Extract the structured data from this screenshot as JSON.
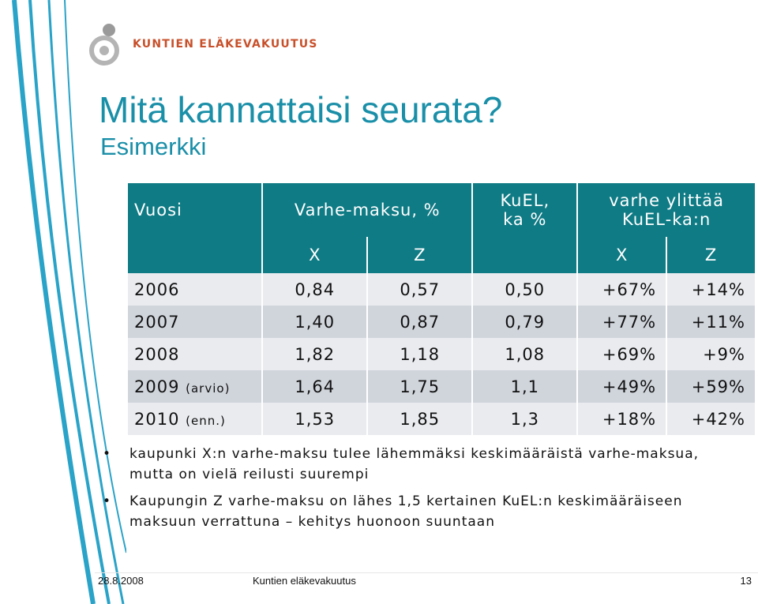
{
  "brand": {
    "name": "KUNTIEN ELÄKEVAKUUTUS",
    "color": "#c8502a"
  },
  "colors": {
    "accent": "#1a8fa8",
    "header_bg": "#0f7b85",
    "row_light": "#e9ebef",
    "row_dark": "#d0d5dc"
  },
  "slide": {
    "title": "Mitä kannattaisi seurata?",
    "subtitle": "Esimerkki"
  },
  "table": {
    "header": {
      "year": "Vuosi",
      "varhe": "Varhe-maksu, %",
      "kuel": "KuEL,\nka %",
      "exceed": "varhe ylittää\nKuEL-ka:n"
    },
    "subheader": {
      "x1": "X",
      "z1": "Z",
      "x2": "X",
      "z2": "Z"
    },
    "rows": [
      {
        "year": "2006",
        "note": "",
        "x": "0,84",
        "z": "0,57",
        "kuel": "0,50",
        "ex_x": "+67%",
        "ex_z": "+14%"
      },
      {
        "year": "2007",
        "note": "",
        "x": "1,40",
        "z": "0,87",
        "kuel": "0,79",
        "ex_x": "+77%",
        "ex_z": "+11%"
      },
      {
        "year": "2008",
        "note": "",
        "x": "1,82",
        "z": "1,18",
        "kuel": "1,08",
        "ex_x": "+69%",
        "ex_z": "+9%"
      },
      {
        "year": "2009",
        "note": "(arvio)",
        "x": "1,64",
        "z": "1,75",
        "kuel": "1,1",
        "ex_x": "+49%",
        "ex_z": "+59%"
      },
      {
        "year": "2010",
        "note": "(enn.)",
        "x": "1,53",
        "z": "1,85",
        "kuel": "1,3",
        "ex_x": "+18%",
        "ex_z": "+42%"
      }
    ]
  },
  "bullets": [
    "kaupunki X:n varhe-maksu tulee lähemmäksi keskimääräistä varhe-maksua, mutta on vielä reilusti suurempi",
    "Kaupungin Z varhe-maksu on lähes 1,5 kertainen KuEL:n keskimääräiseen maksuun verrattuna – kehitys huonoon suuntaan"
  ],
  "bullet_symbol": "•",
  "footer": {
    "date": "28.8.2008",
    "org": "Kuntien eläkevakuutus",
    "page": "13"
  }
}
